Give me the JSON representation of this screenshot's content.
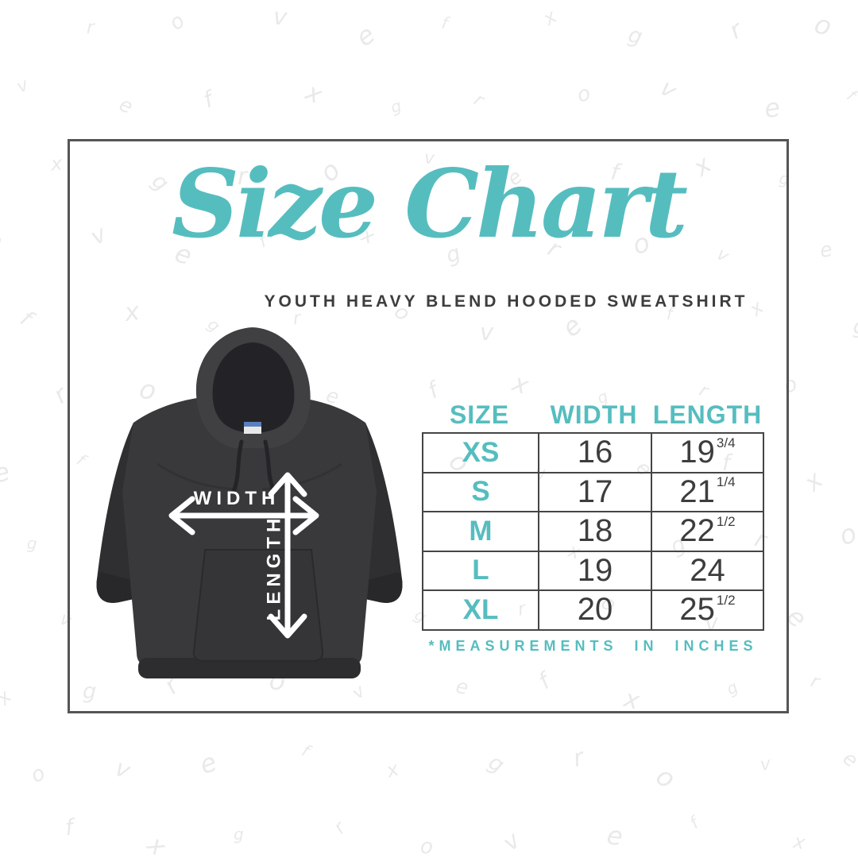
{
  "title": "Size Chart",
  "subtitle": "YOUTH HEAVY BLEND HOODED SWEATSHIRT",
  "diagram": {
    "width_label": "WIDTH",
    "length_label": "LENGTH"
  },
  "table": {
    "headers": [
      "SIZE",
      "WIDTH",
      "LENGTH"
    ],
    "rows": [
      {
        "size": "XS",
        "width": "16",
        "length": "19",
        "length_frac": "3/4"
      },
      {
        "size": "S",
        "width": "17",
        "length": "21",
        "length_frac": "1/4"
      },
      {
        "size": "M",
        "width": "18",
        "length": "22",
        "length_frac": "1/2"
      },
      {
        "size": "L",
        "width": "19",
        "length": "24",
        "length_frac": ""
      },
      {
        "size": "XL",
        "width": "20",
        "length": "25",
        "length_frac": "1/2"
      }
    ],
    "footnote": "*MEASUREMENTS IN INCHES"
  },
  "chart_data": {
    "type": "table",
    "title": "Size Chart",
    "subtitle": "Youth Heavy Blend Hooded Sweatshirt",
    "columns": [
      "SIZE",
      "WIDTH",
      "LENGTH"
    ],
    "units": "inches",
    "rows": [
      [
        "XS",
        16,
        19.75
      ],
      [
        "S",
        17,
        21.25
      ],
      [
        "M",
        18,
        22.5
      ],
      [
        "L",
        19,
        24
      ],
      [
        "XL",
        20,
        25.5
      ]
    ]
  },
  "colors": {
    "accent_teal": "#56bdbf",
    "text_dark": "#3d3d3d",
    "table_border": "#454545",
    "frame_border": "#555555",
    "hoodie_main": "#39393c"
  },
  "watermark": {
    "letters": "grovefx"
  }
}
